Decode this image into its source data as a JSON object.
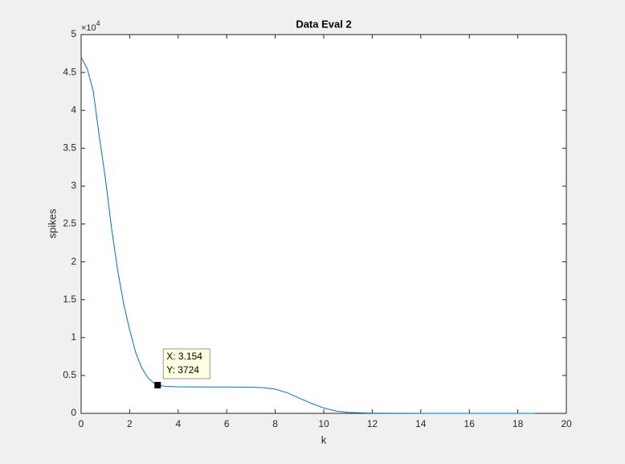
{
  "chart_data": {
    "type": "line",
    "title": "Data Eval 2",
    "x_label": "k",
    "y_label": "spikes",
    "y_multiplier": "×10",
    "y_multiplier_exponent": "4",
    "x": [
      0,
      0.25,
      0.5,
      0.75,
      1,
      1.25,
      1.5,
      1.75,
      2,
      2.25,
      2.5,
      2.75,
      3,
      3.154,
      3.5,
      4,
      5,
      6,
      7,
      7.5,
      8,
      8.5,
      9,
      9.5,
      10,
      10.5,
      11,
      12,
      13,
      14,
      16,
      18,
      18.7
    ],
    "series": [
      {
        "color": "#0072bd",
        "values": [
          47000,
          45500,
          42500,
          36500,
          31000,
          24500,
          19000,
          14500,
          11000,
          8000,
          6000,
          4700,
          4000,
          3724,
          3550,
          3500,
          3480,
          3470,
          3450,
          3400,
          3200,
          2700,
          2000,
          1300,
          700,
          300,
          120,
          30,
          10,
          5,
          2,
          1,
          0
        ]
      }
    ],
    "xlim": [
      0,
      20
    ],
    "xticks": [
      0,
      2,
      4,
      6,
      8,
      10,
      12,
      14,
      16,
      18,
      20
    ],
    "ylim": [
      0,
      50000
    ],
    "yticks": [
      0,
      {
        "value": 5000,
        "label": "0.5"
      },
      {
        "value": 10000,
        "label": "1"
      },
      {
        "value": 15000,
        "label": "1.5"
      },
      {
        "value": 20000,
        "label": "2"
      },
      {
        "value": 25000,
        "label": "2.5"
      },
      {
        "value": 30000,
        "label": "3"
      },
      {
        "value": 35000,
        "label": "3.5"
      },
      {
        "value": 40000,
        "label": "4"
      },
      {
        "value": 45000,
        "label": "4.5"
      },
      {
        "value": 50000,
        "label": "5"
      }
    ],
    "datatip": {
      "x": 3.154,
      "y": 3724,
      "x_label": "X: 3.154",
      "y_label": "Y: 3724"
    }
  }
}
